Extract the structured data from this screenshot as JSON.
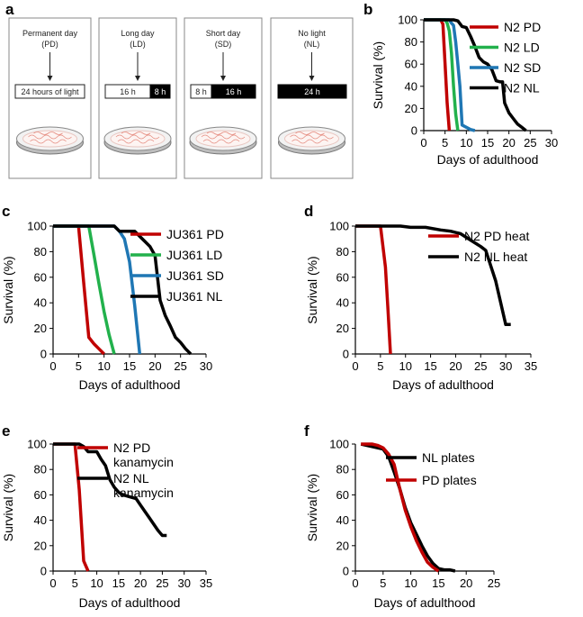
{
  "panels": {
    "a": "a",
    "b": "b",
    "c": "c",
    "d": "d",
    "e": "e",
    "f": "f"
  },
  "schematic": {
    "conditions": [
      {
        "title_line1": "Permanent day",
        "title_line2": "(PD)",
        "bar_labels": [
          "24 hours of light"
        ]
      },
      {
        "title_line1": "Long day",
        "title_line2": "(LD)",
        "bar_labels": [
          "16 h",
          "8 h"
        ]
      },
      {
        "title_line1": "Short day",
        "title_line2": "(SD)",
        "bar_labels": [
          "8 h",
          "16 h"
        ]
      },
      {
        "title_line1": "No light",
        "title_line2": "(NL)",
        "bar_labels": [
          "24 h"
        ]
      }
    ]
  },
  "colors": {
    "red": "#c00000",
    "green": "#22b14c",
    "blue": "#1f77b4",
    "black": "#000000"
  },
  "chart_data": [
    {
      "panel": "b",
      "type": "line",
      "xlabel": "Days of adulthood",
      "ylabel": "Survival (%)",
      "xlim": [
        0,
        30
      ],
      "ylim": [
        0,
        100
      ],
      "xticks": [
        0,
        5,
        10,
        15,
        20,
        25,
        30
      ],
      "yticks": [
        0,
        20,
        40,
        60,
        80,
        100
      ],
      "series": [
        {
          "name": "N2 PD",
          "color": "#c00000",
          "x": [
            0,
            4,
            4.5,
            5,
            5.5,
            6
          ],
          "y": [
            100,
            100,
            96,
            60,
            25,
            0
          ]
        },
        {
          "name": "N2 LD",
          "color": "#22b14c",
          "x": [
            0,
            5,
            5.5,
            6,
            6.5,
            7,
            7.5,
            8
          ],
          "y": [
            100,
            100,
            97,
            90,
            70,
            40,
            15,
            0
          ]
        },
        {
          "name": "N2 SD",
          "color": "#1f77b4",
          "x": [
            0,
            6,
            6.5,
            7,
            7.5,
            8,
            8.5,
            9,
            10,
            11,
            12
          ],
          "y": [
            100,
            100,
            97,
            95,
            80,
            60,
            40,
            5,
            3,
            1,
            0
          ]
        },
        {
          "name": "N2 NL",
          "color": "#000000",
          "x": [
            0,
            6,
            7,
            8,
            9,
            10,
            11,
            12,
            13,
            14,
            15,
            16,
            17,
            18,
            18.5,
            19,
            20,
            21,
            22,
            23,
            24
          ],
          "y": [
            100,
            100,
            100,
            99,
            94,
            93,
            85,
            76,
            66,
            62,
            60,
            55,
            45,
            44,
            44,
            25,
            16,
            11,
            6,
            3,
            0
          ]
        }
      ]
    },
    {
      "panel": "c",
      "type": "line",
      "xlabel": "Days of adulthood",
      "ylabel": "Survival (%)",
      "xlim": [
        0,
        30
      ],
      "ylim": [
        0,
        100
      ],
      "xticks": [
        0,
        5,
        10,
        15,
        20,
        25,
        30
      ],
      "yticks": [
        0,
        20,
        40,
        60,
        80,
        100
      ],
      "series": [
        {
          "name": "JU361 PD",
          "color": "#c00000",
          "x": [
            0,
            5,
            6,
            7,
            8,
            9,
            10
          ],
          "y": [
            100,
            100,
            56,
            13,
            8,
            4,
            0
          ]
        },
        {
          "name": "JU361 LD",
          "color": "#22b14c",
          "x": [
            0,
            7,
            8,
            9,
            10,
            11,
            12
          ],
          "y": [
            100,
            100,
            78,
            55,
            33,
            15,
            0
          ]
        },
        {
          "name": "JU361 SD",
          "color": "#1f77b4",
          "x": [
            0,
            12,
            13,
            14,
            15,
            16,
            17
          ],
          "y": [
            100,
            100,
            96,
            90,
            72,
            38,
            0
          ]
        },
        {
          "name": "JU361 NL",
          "color": "#000000",
          "x": [
            0,
            12,
            13,
            16,
            17,
            18,
            19,
            20,
            21,
            22,
            23,
            24,
            25,
            26,
            27
          ],
          "y": [
            100,
            100,
            96,
            96,
            92,
            88,
            84,
            77,
            42,
            30,
            22,
            13,
            9,
            4,
            0
          ]
        }
      ]
    },
    {
      "panel": "d",
      "type": "line",
      "xlabel": "Days of adulthood",
      "ylabel": "Survival (%)",
      "xlim": [
        0,
        35
      ],
      "ylim": [
        0,
        100
      ],
      "xticks": [
        0,
        5,
        10,
        15,
        20,
        25,
        30,
        35
      ],
      "yticks": [
        0,
        20,
        40,
        60,
        80,
        100
      ],
      "series": [
        {
          "name": "N2 PD heat",
          "color": "#c00000",
          "x": [
            0,
            5,
            6,
            6.5,
            7
          ],
          "y": [
            100,
            100,
            68,
            35,
            0
          ]
        },
        {
          "name": "N2 NL heat",
          "color": "#000000",
          "x": [
            0,
            2,
            9,
            11,
            14,
            17,
            19,
            21,
            23,
            25,
            26,
            28,
            30,
            31
          ],
          "y": [
            100,
            100,
            100,
            99,
            99,
            97,
            96,
            94,
            89,
            84,
            81,
            57,
            23,
            23
          ]
        }
      ]
    },
    {
      "panel": "e",
      "type": "line",
      "xlabel": "Days of adulthood",
      "ylabel": "Survival (%)",
      "xlim": [
        0,
        35
      ],
      "ylim": [
        0,
        100
      ],
      "xticks": [
        0,
        5,
        10,
        15,
        20,
        25,
        30,
        35
      ],
      "yticks": [
        0,
        20,
        40,
        60,
        80,
        100
      ],
      "series": [
        {
          "name": "N2 PD kanamycin",
          "legend_line1": "N2 PD",
          "legend_line2": "kanamycin",
          "color": "#c00000",
          "x": [
            0,
            5,
            6,
            7,
            8
          ],
          "y": [
            100,
            100,
            64,
            8,
            0
          ]
        },
        {
          "name": "N2 NL kanamycin",
          "legend_line1": "N2 NL",
          "legend_line2": "kanamycin",
          "color": "#000000",
          "x": [
            0,
            6,
            7,
            8,
            9,
            10,
            11,
            12,
            13,
            14,
            15,
            16,
            17,
            18,
            19,
            20,
            21,
            22,
            23,
            24,
            25,
            26
          ],
          "y": [
            100,
            100,
            98,
            94,
            94,
            94,
            88,
            83,
            72,
            66,
            62,
            60,
            59,
            58,
            57,
            52,
            47,
            42,
            37,
            32,
            28,
            28
          ]
        }
      ]
    },
    {
      "panel": "f",
      "type": "line",
      "xlabel": "Days of adulthood",
      "ylabel": "Survival (%)",
      "xlim": [
        0,
        25
      ],
      "ylim": [
        0,
        100
      ],
      "xticks": [
        0,
        5,
        10,
        15,
        20,
        25
      ],
      "yticks": [
        0,
        20,
        40,
        60,
        80,
        100
      ],
      "series": [
        {
          "name": "NL plates",
          "color": "#000000",
          "x": [
            1,
            2,
            3,
            4,
            5,
            6,
            7,
            8,
            9,
            10,
            11,
            12,
            13,
            14,
            15,
            16,
            17,
            18
          ],
          "y": [
            100,
            99,
            98,
            97,
            96,
            90,
            78,
            65,
            50,
            38,
            29,
            20,
            12,
            6,
            2,
            1,
            1,
            0
          ]
        },
        {
          "name": "PD plates",
          "color": "#c00000",
          "x": [
            1,
            2,
            3,
            4,
            5,
            6,
            7,
            8,
            9,
            10,
            11,
            12,
            13,
            14,
            15
          ],
          "y": [
            100,
            100,
            100,
            99,
            97,
            92,
            84,
            65,
            48,
            35,
            24,
            15,
            7,
            3,
            0
          ]
        }
      ]
    }
  ]
}
